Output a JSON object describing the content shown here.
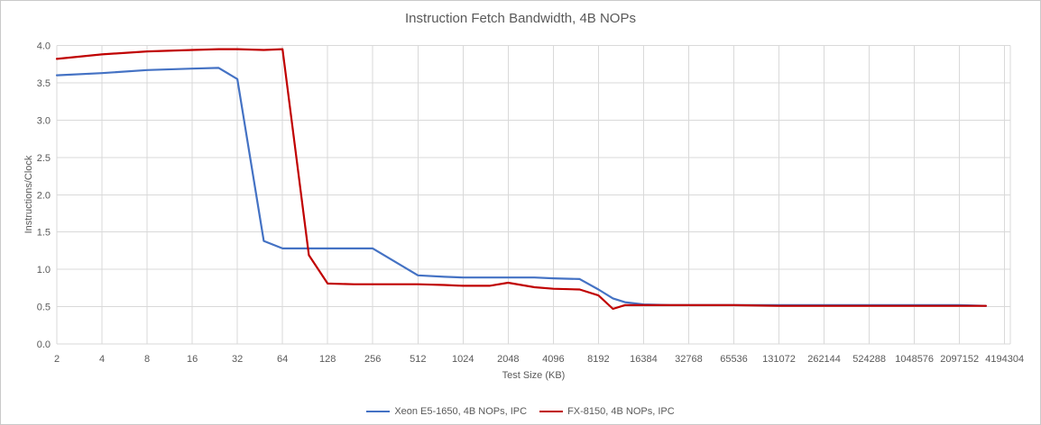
{
  "chart": {
    "title": "Instruction Fetch Bandwidth, 4B NOPs"
  },
  "chart_data": {
    "type": "line",
    "title": "Instruction Fetch Bandwidth, 4B NOPs",
    "xlabel": "Test Size (KB)",
    "ylabel": "Instructions/Clock",
    "x_scale": "log2",
    "x_ticks": [
      2,
      4,
      8,
      16,
      32,
      64,
      128,
      256,
      512,
      1024,
      2048,
      4096,
      8192,
      16384,
      32768,
      65536,
      131072,
      262144,
      524288,
      1048576,
      2097152,
      4194304
    ],
    "x_tick_labels": [
      "2",
      "4",
      "8",
      "16",
      "32",
      "64",
      "128",
      "256",
      "512",
      "1024",
      "2048",
      "4096",
      "8192",
      "16384",
      "32768",
      "65536",
      "131072",
      "262144",
      "524288",
      "1048576",
      "2097152",
      "4194304"
    ],
    "ylim": [
      0.0,
      4.0
    ],
    "y_ticks": [
      0.0,
      0.5,
      1.0,
      1.5,
      2.0,
      2.5,
      3.0,
      3.5,
      4.0
    ],
    "y_tick_labels": [
      "0.0",
      "0.5",
      "1.0",
      "1.5",
      "2.0",
      "2.5",
      "3.0",
      "3.5",
      "4.0"
    ],
    "grid": true,
    "legend_position": "bottom",
    "colors": {
      "grid": "#d9d9d9",
      "text": "#595959",
      "series_blue": "#4472c4",
      "series_red": "#c00000"
    },
    "series": [
      {
        "name": "Xeon E5-1650, 4B NOPs, IPC",
        "color": "#4472c4",
        "points": [
          [
            2,
            3.6
          ],
          [
            4,
            3.63
          ],
          [
            8,
            3.67
          ],
          [
            16,
            3.69
          ],
          [
            24,
            3.7
          ],
          [
            32,
            3.55
          ],
          [
            48,
            1.38
          ],
          [
            64,
            1.28
          ],
          [
            96,
            1.28
          ],
          [
            128,
            1.28
          ],
          [
            192,
            1.28
          ],
          [
            256,
            1.28
          ],
          [
            512,
            0.92
          ],
          [
            768,
            0.9
          ],
          [
            1024,
            0.89
          ],
          [
            1536,
            0.89
          ],
          [
            2048,
            0.89
          ],
          [
            3072,
            0.89
          ],
          [
            4096,
            0.88
          ],
          [
            6144,
            0.87
          ],
          [
            8192,
            0.73
          ],
          [
            10240,
            0.61
          ],
          [
            12288,
            0.56
          ],
          [
            16384,
            0.53
          ],
          [
            24576,
            0.52
          ],
          [
            32768,
            0.52
          ],
          [
            65536,
            0.52
          ],
          [
            131072,
            0.52
          ],
          [
            262144,
            0.52
          ],
          [
            524288,
            0.52
          ],
          [
            1048576,
            0.52
          ],
          [
            2097152,
            0.52
          ],
          [
            3145728,
            0.51
          ]
        ]
      },
      {
        "name": "FX-8150, 4B NOPs, IPC",
        "color": "#c00000",
        "points": [
          [
            2,
            3.82
          ],
          [
            4,
            3.88
          ],
          [
            8,
            3.92
          ],
          [
            16,
            3.94
          ],
          [
            24,
            3.95
          ],
          [
            32,
            3.95
          ],
          [
            48,
            3.94
          ],
          [
            64,
            3.95
          ],
          [
            96,
            1.19
          ],
          [
            128,
            0.81
          ],
          [
            192,
            0.8
          ],
          [
            256,
            0.8
          ],
          [
            384,
            0.8
          ],
          [
            512,
            0.8
          ],
          [
            768,
            0.79
          ],
          [
            1024,
            0.78
          ],
          [
            1536,
            0.78
          ],
          [
            2048,
            0.82
          ],
          [
            3072,
            0.76
          ],
          [
            4096,
            0.74
          ],
          [
            6144,
            0.73
          ],
          [
            8192,
            0.65
          ],
          [
            10240,
            0.47
          ],
          [
            12288,
            0.52
          ],
          [
            16384,
            0.52
          ],
          [
            24576,
            0.52
          ],
          [
            32768,
            0.52
          ],
          [
            65536,
            0.52
          ],
          [
            131072,
            0.51
          ],
          [
            262144,
            0.51
          ],
          [
            524288,
            0.51
          ],
          [
            1048576,
            0.51
          ],
          [
            2097152,
            0.51
          ],
          [
            3145728,
            0.51
          ]
        ]
      }
    ]
  }
}
